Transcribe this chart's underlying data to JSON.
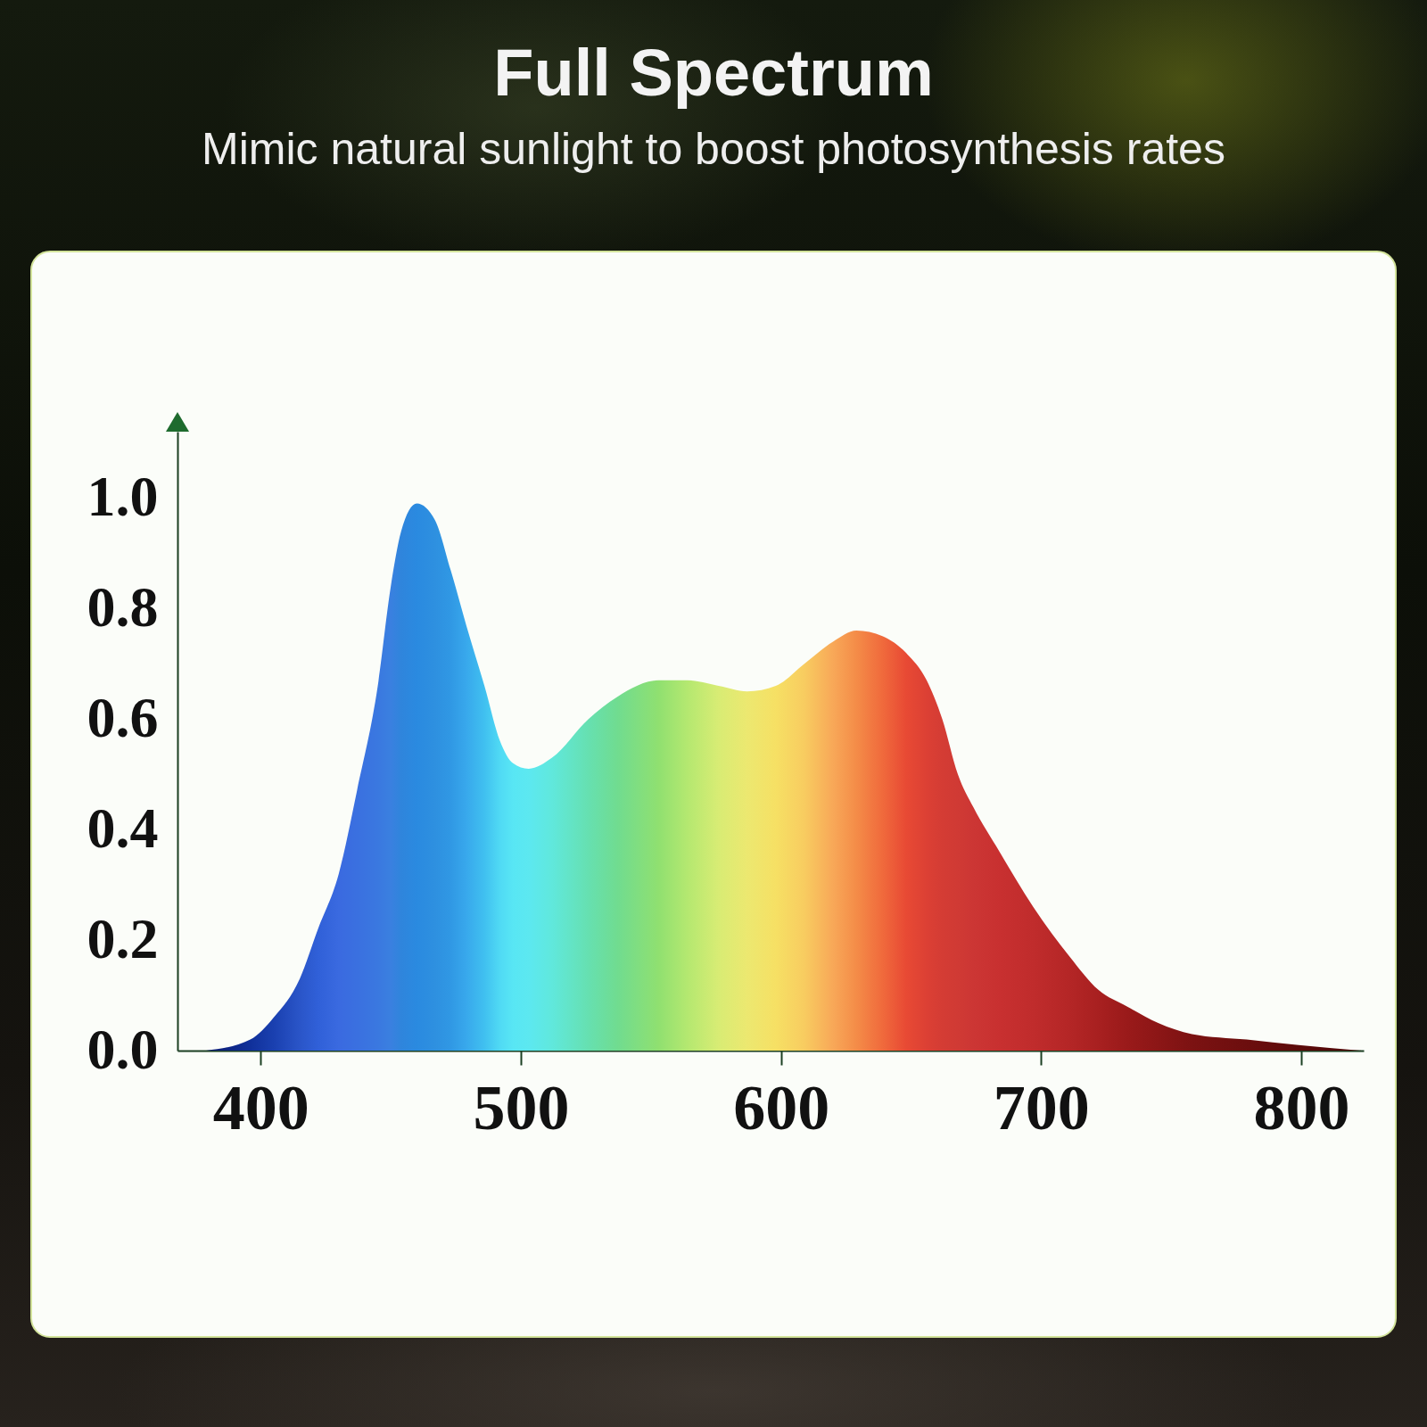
{
  "chart_data": {
    "type": "area",
    "title": "Full Spectrum",
    "subtitle": "Mimic natural sunlight to boost photosynthesis rates",
    "x": [
      379,
      396,
      405,
      415,
      422,
      430,
      437,
      445,
      450,
      454,
      460,
      467,
      473,
      479,
      486,
      492,
      497,
      503,
      512,
      526,
      537,
      553,
      564,
      576,
      587,
      598,
      609,
      620,
      629,
      639,
      648,
      656,
      662,
      668,
      674,
      684,
      697,
      711,
      722,
      733,
      745,
      758,
      779,
      799,
      823
    ],
    "values": [
      0,
      0.02,
      0.06,
      0.13,
      0.22,
      0.32,
      0.47,
      0.66,
      0.84,
      0.94,
      0.99,
      0.96,
      0.87,
      0.77,
      0.66,
      0.56,
      0.52,
      0.51,
      0.53,
      0.6,
      0.64,
      0.67,
      0.67,
      0.66,
      0.65,
      0.66,
      0.7,
      0.74,
      0.76,
      0.75,
      0.72,
      0.67,
      0.6,
      0.5,
      0.44,
      0.36,
      0.26,
      0.17,
      0.11,
      0.08,
      0.05,
      0.03,
      0.02,
      0.01,
      0
    ],
    "colors": [
      "#0a1a6e",
      "#10309a",
      "#1a40b0",
      "#2a55c8",
      "#3060d8",
      "#3a6ae0",
      "#3a70e0",
      "#3a78e0",
      "#3a80e0",
      "#2f85dc",
      "#2a8ae0",
      "#2e90e0",
      "#3098e4",
      "#38a8ec",
      "#40c0f0",
      "#50daf4",
      "#58e6f4",
      "#5ce8f0",
      "#60e8dc",
      "#66e0b0",
      "#70dc90",
      "#90e070",
      "#b4e870",
      "#d8ec74",
      "#ece870",
      "#f6e064",
      "#f8cc60",
      "#f8a858",
      "#f48c48",
      "#f06a3c",
      "#e84a34",
      "#dc4034",
      "#d43c34",
      "#d03a34",
      "#cc3634",
      "#c83030",
      "#c02c2c",
      "#b42626",
      "#a82020",
      "#9a1a1a",
      "#8c1616",
      "#7c1212",
      "#6c0e0e",
      "#5c0a0a",
      "#4c0808"
    ],
    "xlim": [
      368,
      824
    ],
    "xticks": [
      400,
      500,
      600,
      700,
      800
    ],
    "ylim": [
      0,
      1.12
    ],
    "yticks": [
      {
        "value": 0,
        "label": "0.0"
      },
      0.2,
      0.4,
      0.6,
      0.8,
      {
        "value": 1,
        "label": "1.0"
      }
    ]
  }
}
